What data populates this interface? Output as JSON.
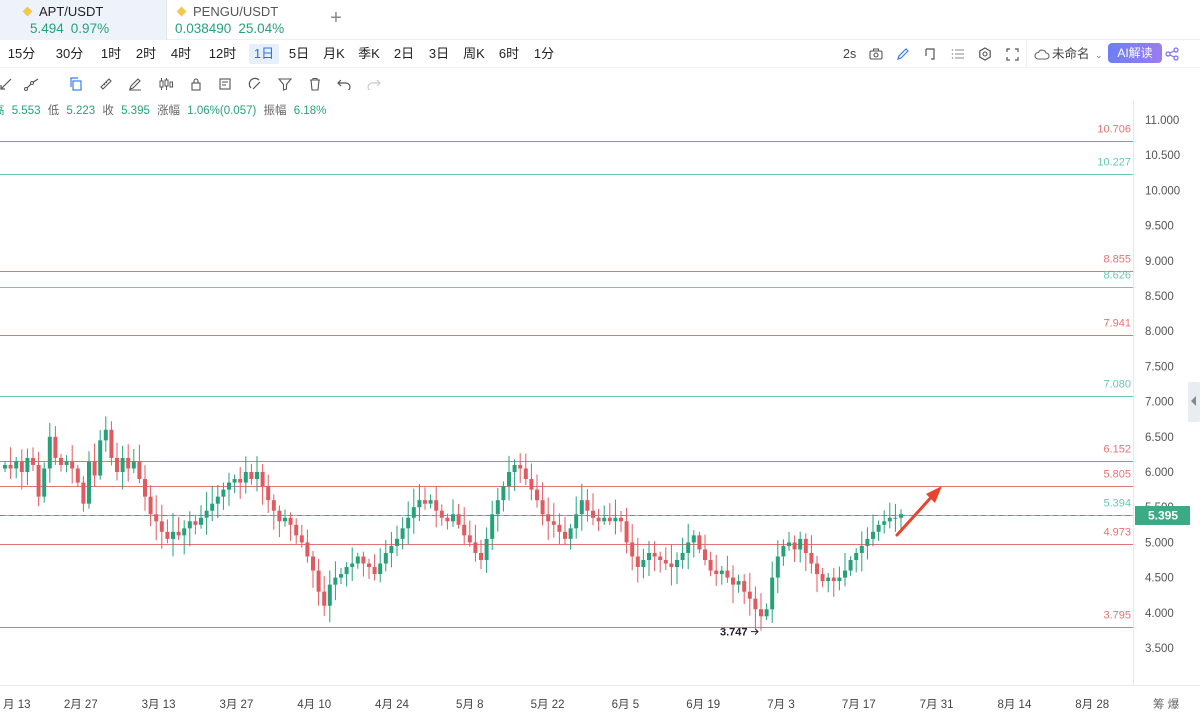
{
  "tabs": [
    {
      "symbol": "APT/USDT",
      "price": "5.494",
      "change": "0.97%",
      "active": true
    },
    {
      "symbol": "PENGU/USDT",
      "price": "0.038490",
      "change": "25.04%",
      "active": false
    }
  ],
  "intervals": [
    "15分",
    "30分",
    "1时",
    "2时",
    "4时",
    "12时",
    "1日",
    "5日",
    "月K",
    "季K",
    "2日",
    "3日",
    "周K",
    "6时",
    "1分"
  ],
  "active_interval": "1日",
  "toolbar_right": {
    "refresh": "2s",
    "layout_name": "未命名",
    "ai_label": "AI解读"
  },
  "info": {
    "high_label": "高",
    "high": "5.553",
    "low_label": "低",
    "low": "5.223",
    "close_label": "收",
    "close": "5.395",
    "chg_label": "涨幅",
    "chg": "1.06%(0.057)",
    "amp_label": "振幅",
    "amp": "6.18%"
  },
  "colors": {
    "up": "#26a17a",
    "down": "#e15a5f",
    "red_line": "#e57373",
    "green_line": "#66c9b5",
    "arrow": "#e8452e",
    "tag": "#3daa86"
  },
  "chart_data": {
    "type": "candlestick",
    "y_ticks": [
      "11.000",
      "10.500",
      "10.000",
      "9.500",
      "9.000",
      "8.500",
      "8.000",
      "7.500",
      "7.000",
      "6.500",
      "6.000",
      "5.500",
      "5.000",
      "4.500",
      "4.000",
      "3.500"
    ],
    "ylim": [
      3.5,
      11.0
    ],
    "x_ticks": [
      "月 13",
      "2月 27",
      "3月 13",
      "3月 27",
      "4月 10",
      "4月 24",
      "5月 8",
      "5月 22",
      "6月 5",
      "6月 19",
      "7月 3",
      "7月 17",
      "7月 31",
      "8月 14",
      "8月 28"
    ],
    "x_ticks_extra": "筹 爆",
    "levels": [
      {
        "value": 10.706,
        "label": "10.706",
        "color": "red"
      },
      {
        "value": 10.227,
        "label": "10.227",
        "color": "green"
      },
      {
        "value": 8.855,
        "label": "8.855",
        "color": "red"
      },
      {
        "value": 8.626,
        "label": "8.626",
        "color": "green"
      },
      {
        "value": 7.941,
        "label": "7.941",
        "color": "red"
      },
      {
        "value": 7.08,
        "label": "7.080",
        "color": "green"
      },
      {
        "value": 6.152,
        "label": "6.152",
        "color": "red"
      },
      {
        "value": 5.805,
        "label": "5.805",
        "color": "red"
      },
      {
        "value": 5.394,
        "label": "5.394",
        "color": "green"
      },
      {
        "value": 4.973,
        "label": "4.973",
        "color": "red"
      },
      {
        "value": 3.795,
        "label": "3.795",
        "color": "red"
      }
    ],
    "last_price": {
      "value": 5.395,
      "label": "5.395"
    },
    "low_marker": {
      "value": 3.747,
      "label": "3.747"
    },
    "closes": [
      6.1,
      6.05,
      6.15,
      6.0,
      6.2,
      6.1,
      5.65,
      6.05,
      6.5,
      6.2,
      6.1,
      6.15,
      6.05,
      5.85,
      5.55,
      6.15,
      5.95,
      6.45,
      6.6,
      6.2,
      6.0,
      6.2,
      6.05,
      6.15,
      5.9,
      5.65,
      5.4,
      5.3,
      5.15,
      5.05,
      5.15,
      5.1,
      5.2,
      5.3,
      5.25,
      5.35,
      5.45,
      5.55,
      5.65,
      5.75,
      5.85,
      5.9,
      5.85,
      6.0,
      5.9,
      6.0,
      5.8,
      5.6,
      5.45,
      5.3,
      5.35,
      5.25,
      5.1,
      5.0,
      4.8,
      4.6,
      4.3,
      4.1,
      4.4,
      4.5,
      4.55,
      4.65,
      4.7,
      4.8,
      4.7,
      4.65,
      4.55,
      4.7,
      4.85,
      4.95,
      5.05,
      5.2,
      5.35,
      5.5,
      5.6,
      5.55,
      5.6,
      5.45,
      5.35,
      5.3,
      5.4,
      5.25,
      5.1,
      5.0,
      4.85,
      4.75,
      5.05,
      5.4,
      5.6,
      5.8,
      6.0,
      6.1,
      6.05,
      5.9,
      5.75,
      5.6,
      5.4,
      5.3,
      5.25,
      5.15,
      5.05,
      5.2,
      5.4,
      5.6,
      5.45,
      5.35,
      5.3,
      5.35,
      5.3,
      5.35,
      5.3,
      5.0,
      4.8,
      4.65,
      4.75,
      4.85,
      4.8,
      4.75,
      4.7,
      4.65,
      4.75,
      4.85,
      5.0,
      5.1,
      4.9,
      4.75,
      4.6,
      4.55,
      4.6,
      4.5,
      4.4,
      4.45,
      4.3,
      4.2,
      4.05,
      3.95,
      4.05,
      4.5,
      4.8,
      4.95,
      5.0,
      4.9,
      5.05,
      4.85,
      4.7,
      4.55,
      4.45,
      4.5,
      4.45,
      4.5,
      4.6,
      4.75,
      4.85,
      4.95,
      5.05,
      5.15,
      5.25,
      5.3,
      5.35,
      5.35,
      5.4
    ]
  }
}
